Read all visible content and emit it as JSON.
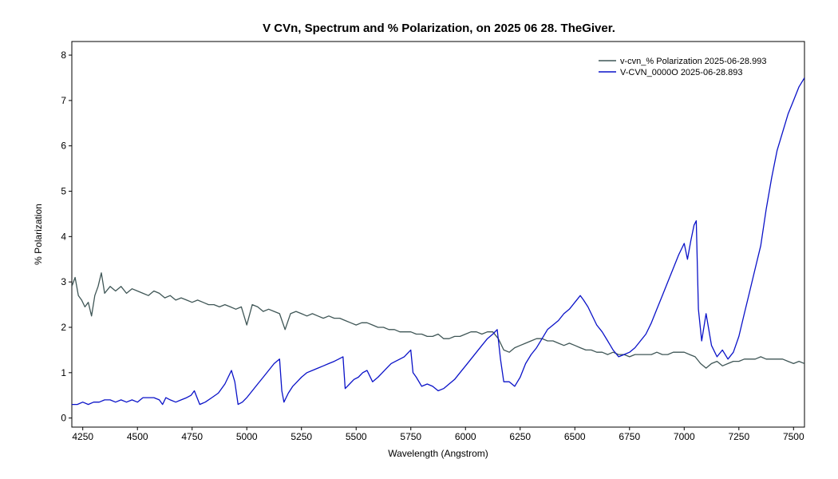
{
  "chart_data": {
    "type": "line",
    "title": "V CVn,  Spectrum and % Polarization, on 2025 06 28. TheGiver.",
    "xlabel": "Wavelength (Angstrom)",
    "ylabel": "%  Polarization",
    "xlim": [
      4200,
      7550
    ],
    "ylim": [
      -0.2,
      8.3
    ],
    "xticks": [
      4250,
      4500,
      4750,
      5000,
      5250,
      5500,
      5750,
      6000,
      6250,
      6500,
      6750,
      7000,
      7250,
      7500
    ],
    "yticks": [
      0,
      1,
      2,
      3,
      4,
      5,
      6,
      7,
      8
    ],
    "grid": false,
    "legend_position": "top-right",
    "series": [
      {
        "name": "v-cvn_% Polarization  2025-06-28.993",
        "color": "#3f5656",
        "x": [
          4200,
          4215,
          4230,
          4245,
          4260,
          4275,
          4290,
          4305,
          4320,
          4335,
          4350,
          4375,
          4400,
          4425,
          4450,
          4475,
          4500,
          4525,
          4550,
          4575,
          4600,
          4625,
          4650,
          4675,
          4700,
          4725,
          4750,
          4775,
          4800,
          4825,
          4850,
          4875,
          4900,
          4925,
          4950,
          4975,
          5000,
          5025,
          5050,
          5075,
          5100,
          5125,
          5150,
          5175,
          5200,
          5225,
          5250,
          5275,
          5300,
          5325,
          5350,
          5375,
          5400,
          5425,
          5450,
          5475,
          5500,
          5525,
          5550,
          5575,
          5600,
          5625,
          5650,
          5675,
          5700,
          5725,
          5750,
          5775,
          5800,
          5825,
          5850,
          5875,
          5900,
          5925,
          5950,
          5975,
          6000,
          6025,
          6050,
          6075,
          6100,
          6125,
          6150,
          6175,
          6200,
          6225,
          6250,
          6275,
          6300,
          6325,
          6350,
          6375,
          6400,
          6425,
          6450,
          6475,
          6500,
          6525,
          6550,
          6575,
          6600,
          6625,
          6650,
          6675,
          6700,
          6725,
          6750,
          6775,
          6800,
          6825,
          6850,
          6875,
          6900,
          6925,
          6950,
          6975,
          7000,
          7025,
          7050,
          7075,
          7100,
          7125,
          7150,
          7175,
          7200,
          7225,
          7250,
          7275,
          7300,
          7325,
          7350,
          7375,
          7400,
          7425,
          7450,
          7475,
          7500,
          7525,
          7550
        ],
        "values": [
          2.9,
          3.1,
          2.7,
          2.6,
          2.45,
          2.55,
          2.25,
          2.7,
          2.9,
          3.2,
          2.75,
          2.9,
          2.8,
          2.9,
          2.75,
          2.85,
          2.8,
          2.75,
          2.7,
          2.8,
          2.75,
          2.65,
          2.7,
          2.6,
          2.65,
          2.6,
          2.55,
          2.6,
          2.55,
          2.5,
          2.5,
          2.45,
          2.5,
          2.45,
          2.4,
          2.45,
          2.05,
          2.5,
          2.45,
          2.35,
          2.4,
          2.35,
          2.3,
          1.95,
          2.3,
          2.35,
          2.3,
          2.25,
          2.3,
          2.25,
          2.2,
          2.25,
          2.2,
          2.2,
          2.15,
          2.1,
          2.05,
          2.1,
          2.1,
          2.05,
          2.0,
          2.0,
          1.95,
          1.95,
          1.9,
          1.9,
          1.9,
          1.85,
          1.85,
          1.8,
          1.8,
          1.85,
          1.75,
          1.75,
          1.8,
          1.8,
          1.85,
          1.9,
          1.9,
          1.85,
          1.9,
          1.9,
          1.75,
          1.5,
          1.45,
          1.55,
          1.6,
          1.65,
          1.7,
          1.75,
          1.75,
          1.7,
          1.7,
          1.65,
          1.6,
          1.65,
          1.6,
          1.55,
          1.5,
          1.5,
          1.45,
          1.45,
          1.4,
          1.45,
          1.4,
          1.4,
          1.35,
          1.4,
          1.4,
          1.4,
          1.4,
          1.45,
          1.4,
          1.4,
          1.45,
          1.45,
          1.45,
          1.4,
          1.35,
          1.2,
          1.1,
          1.2,
          1.25,
          1.15,
          1.2,
          1.25,
          1.25,
          1.3,
          1.3,
          1.3,
          1.35,
          1.3,
          1.3,
          1.3,
          1.3,
          1.25,
          1.2,
          1.25,
          1.2
        ]
      },
      {
        "name": "V-CVN_0000O  2025-06-28.893",
        "color": "#0a12c8",
        "x": [
          4200,
          4225,
          4250,
          4275,
          4300,
          4325,
          4350,
          4375,
          4400,
          4425,
          4450,
          4475,
          4500,
          4525,
          4550,
          4575,
          4600,
          4615,
          4630,
          4650,
          4675,
          4700,
          4725,
          4745,
          4760,
          4785,
          4810,
          4840,
          4870,
          4900,
          4930,
          4945,
          4960,
          4980,
          5000,
          5025,
          5050,
          5075,
          5100,
          5125,
          5150,
          5160,
          5170,
          5190,
          5210,
          5230,
          5250,
          5275,
          5300,
          5325,
          5350,
          5375,
          5400,
          5420,
          5440,
          5450,
          5470,
          5490,
          5510,
          5530,
          5550,
          5575,
          5600,
          5620,
          5640,
          5660,
          5680,
          5700,
          5720,
          5740,
          5750,
          5760,
          5775,
          5800,
          5825,
          5850,
          5875,
          5900,
          5925,
          5950,
          5975,
          6000,
          6025,
          6050,
          6075,
          6100,
          6125,
          6145,
          6160,
          6175,
          6200,
          6225,
          6250,
          6275,
          6300,
          6325,
          6350,
          6375,
          6400,
          6425,
          6450,
          6475,
          6500,
          6525,
          6540,
          6560,
          6575,
          6600,
          6625,
          6650,
          6675,
          6700,
          6725,
          6750,
          6775,
          6800,
          6825,
          6850,
          6875,
          6900,
          6925,
          6950,
          6975,
          7000,
          7015,
          7030,
          7045,
          7055,
          7065,
          7080,
          7100,
          7125,
          7150,
          7175,
          7200,
          7225,
          7250,
          7275,
          7300,
          7325,
          7350,
          7375,
          7400,
          7425,
          7450,
          7475,
          7500,
          7525,
          7550
        ],
        "values": [
          0.3,
          0.3,
          0.35,
          0.3,
          0.35,
          0.35,
          0.4,
          0.4,
          0.35,
          0.4,
          0.35,
          0.4,
          0.35,
          0.45,
          0.45,
          0.45,
          0.4,
          0.3,
          0.45,
          0.4,
          0.35,
          0.4,
          0.45,
          0.5,
          0.6,
          0.3,
          0.35,
          0.45,
          0.55,
          0.75,
          1.05,
          0.8,
          0.3,
          0.35,
          0.45,
          0.6,
          0.75,
          0.9,
          1.05,
          1.2,
          1.3,
          0.6,
          0.35,
          0.55,
          0.7,
          0.8,
          0.9,
          1.0,
          1.05,
          1.1,
          1.15,
          1.2,
          1.25,
          1.3,
          1.35,
          0.65,
          0.75,
          0.85,
          0.9,
          1.0,
          1.05,
          0.8,
          0.9,
          1.0,
          1.1,
          1.2,
          1.25,
          1.3,
          1.35,
          1.45,
          1.5,
          1.0,
          0.9,
          0.7,
          0.75,
          0.7,
          0.6,
          0.65,
          0.75,
          0.85,
          1.0,
          1.15,
          1.3,
          1.45,
          1.6,
          1.75,
          1.85,
          1.95,
          1.3,
          0.8,
          0.8,
          0.7,
          0.9,
          1.2,
          1.4,
          1.55,
          1.75,
          1.95,
          2.05,
          2.15,
          2.3,
          2.4,
          2.55,
          2.7,
          2.6,
          2.45,
          2.3,
          2.05,
          1.9,
          1.7,
          1.5,
          1.35,
          1.4,
          1.45,
          1.55,
          1.7,
          1.85,
          2.1,
          2.4,
          2.7,
          3.0,
          3.3,
          3.6,
          3.85,
          3.5,
          3.9,
          4.25,
          4.35,
          2.4,
          1.7,
          2.3,
          1.6,
          1.35,
          1.5,
          1.3,
          1.45,
          1.8,
          2.3,
          2.8,
          3.3,
          3.8,
          4.6,
          5.3,
          5.9,
          6.3,
          6.7,
          7.0,
          7.3,
          7.5
        ]
      }
    ]
  }
}
